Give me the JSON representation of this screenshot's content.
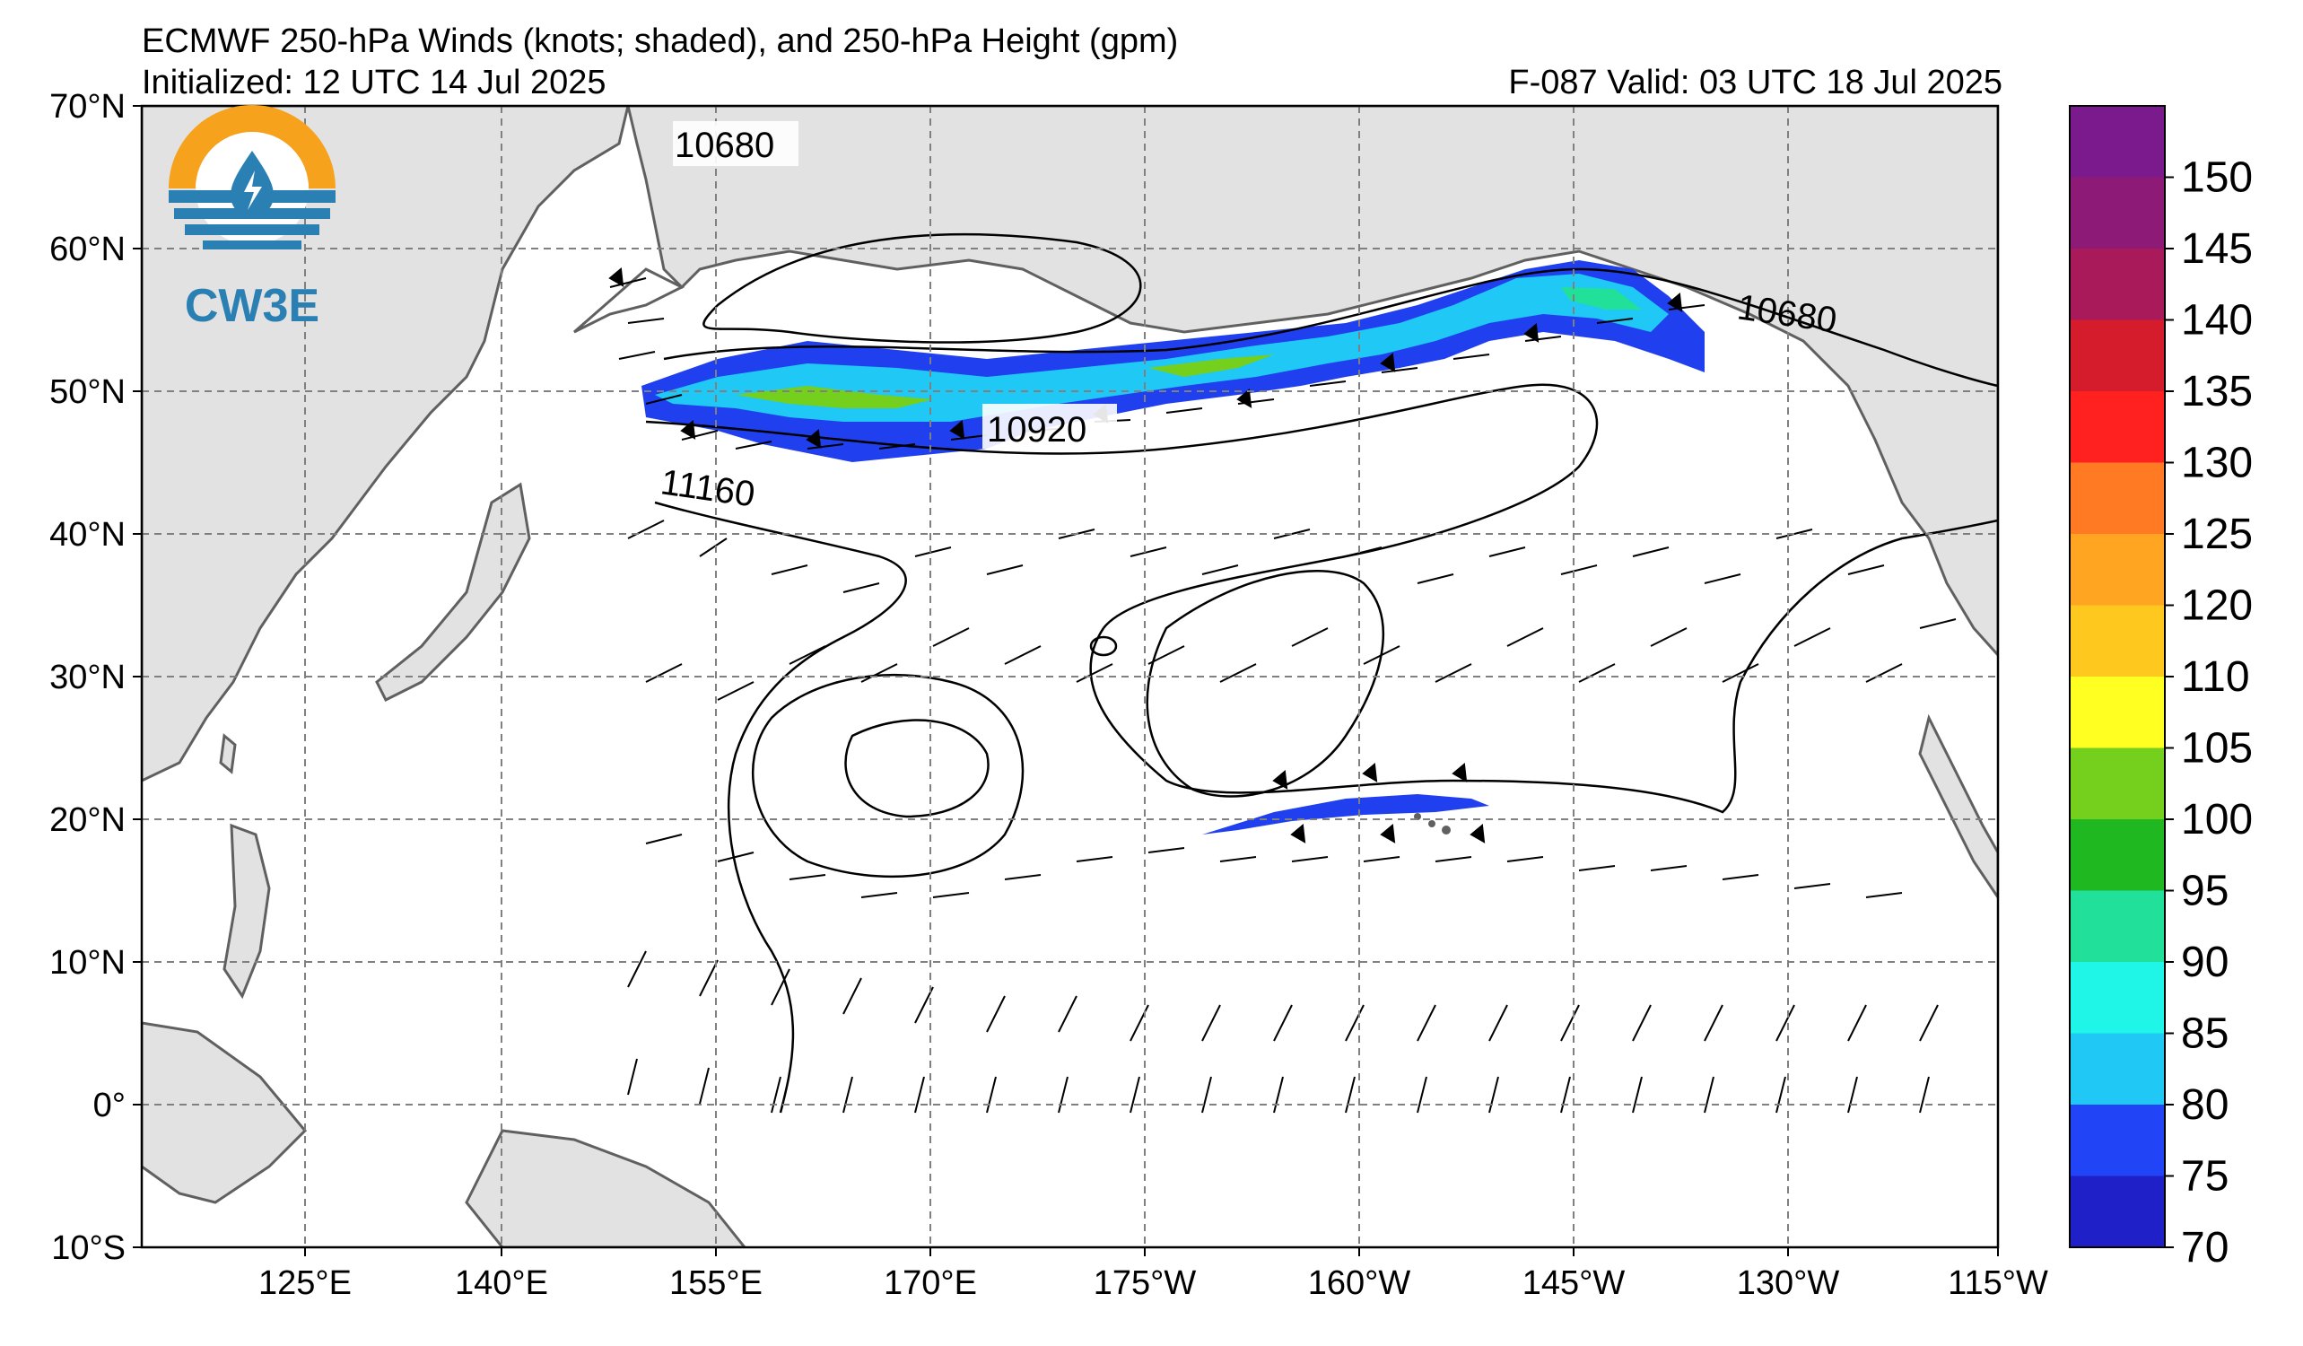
{
  "title": "ECMWF 250-hPa Winds (knots; shaded), and 250-hPa Height (gpm)",
  "initialized": "Initialized: 12 UTC 14 Jul 2025",
  "valid": "F-087  Valid: 03 UTC 18 Jul 2025",
  "logo_text": "CW3E",
  "lat_labels": [
    "70°N",
    "60°N",
    "50°N",
    "40°N",
    "30°N",
    "20°N",
    "10°N",
    "0°",
    "10°S"
  ],
  "lon_labels": [
    "125°E",
    "140°E",
    "155°E",
    "170°E",
    "175°W",
    "160°W",
    "145°W",
    "130°W",
    "115°W"
  ],
  "contour_labels": [
    "10680",
    "10920",
    "11160",
    "10680"
  ],
  "colorbar": {
    "labels": [
      "150",
      "145",
      "140",
      "135",
      "130",
      "125",
      "120",
      "110",
      "105",
      "100",
      "95",
      "90",
      "85",
      "80",
      "75",
      "70"
    ],
    "colors": [
      "#7b1a8c",
      "#8e1a78",
      "#a81a5a",
      "#d41c2c",
      "#ff2020",
      "#ff7a22",
      "#ffa522",
      "#ffc81e",
      "#ffff22",
      "#74d01c",
      "#20b820",
      "#20e09a",
      "#20f6e8",
      "#20c8f6",
      "#2044f6",
      "#2020c8"
    ]
  },
  "colors": {
    "land": "#e2e2e2",
    "coast": "#606060",
    "grid": "#808080",
    "jet_blue": "#2040f0",
    "jet_cyan": "#20c8f6",
    "jet_green": "#74d01c"
  }
}
